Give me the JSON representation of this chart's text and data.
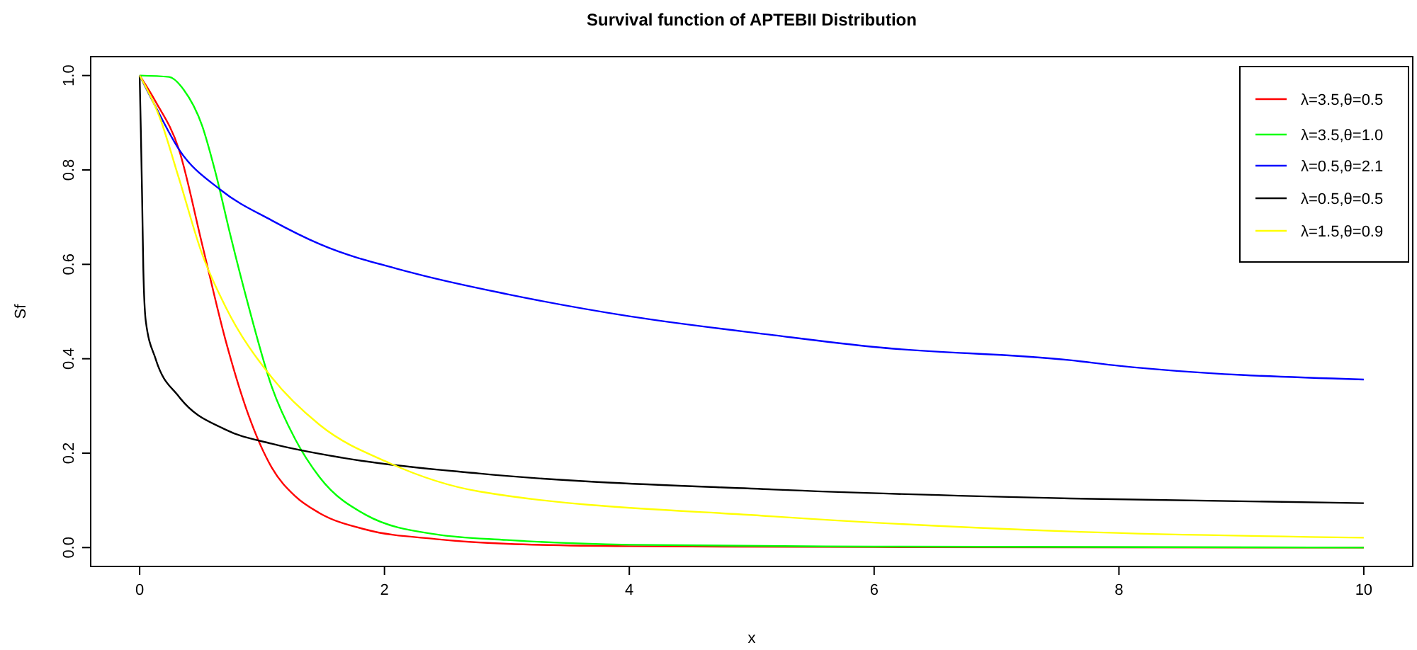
{
  "chart_data": {
    "type": "line",
    "title": "Survival function of APTEBII Distribution",
    "xlabel": "x",
    "ylabel": "Sf",
    "xlim": [
      -0.4,
      10.4
    ],
    "ylim": [
      -0.04,
      1.04
    ],
    "xticks": [
      0,
      2,
      4,
      6,
      8,
      10
    ],
    "yticks": [
      {
        "value": 0,
        "label": "0.0"
      },
      {
        "value": 0.2,
        "label": "0.2"
      },
      {
        "value": 0.4,
        "label": "0.4"
      },
      {
        "value": 0.6,
        "label": "0.6"
      },
      {
        "value": 0.8,
        "label": "0.8"
      },
      {
        "value": 1,
        "label": "1.0"
      }
    ],
    "legend": "top right",
    "grid": false,
    "marker": "none",
    "line_style": "solid",
    "series": [
      {
        "name": "λ=3.5,θ=0.5",
        "color": "#ff0000",
        "x": [
          0,
          0.13,
          0.32,
          0.51,
          0.7,
          0.89,
          1.08,
          1.27,
          1.47,
          1.85,
          2.42,
          3,
          4,
          6,
          10
        ],
        "values": [
          1,
          0.945,
          0.844,
          0.643,
          0.441,
          0.28,
          0.169,
          0.109,
          0.073,
          0.038,
          0.018,
          0.008,
          0.003,
          0.001,
          0
        ]
      },
      {
        "name": "λ=3.5,θ=1.0",
        "color": "#00ff00",
        "x": [
          0,
          0.24,
          0.36,
          0.51,
          0.62,
          0.74,
          0.89,
          1.08,
          1.27,
          1.47,
          1.85,
          2.42,
          3,
          4,
          6,
          10
        ],
        "values": [
          1,
          0.997,
          0.97,
          0.894,
          0.794,
          0.663,
          0.511,
          0.34,
          0.23,
          0.149,
          0.069,
          0.028,
          0.016,
          0.006,
          0.002,
          0
        ]
      },
      {
        "name": "λ=0.5,θ=2.1",
        "color": "#0000ff",
        "x": [
          0,
          0.13,
          0.32,
          0.66,
          1.08,
          1.47,
          2.23,
          3,
          4,
          5.18,
          6,
          7.6,
          8,
          10
        ],
        "values": [
          1,
          0.934,
          0.844,
          0.758,
          0.693,
          0.643,
          0.582,
          0.537,
          0.49,
          0.45,
          0.425,
          0.397,
          0.385,
          0.356
        ]
      },
      {
        "name": "λ=0.5,θ=0.5",
        "color": "#000000",
        "x": [
          0,
          0.01,
          0.02,
          0.03,
          0.05,
          0.13,
          0.32,
          0.7,
          1.08,
          1.66,
          2.77,
          5.18,
          7.6,
          10
        ],
        "values": [
          1,
          0.88,
          0.743,
          0.59,
          0.48,
          0.4,
          0.32,
          0.25,
          0.22,
          0.19,
          0.157,
          0.123,
          0.104,
          0.094
        ]
      },
      {
        "name": "λ=1.5,θ=0.9",
        "color": "#ffff00",
        "x": [
          0,
          0.16,
          0.32,
          0.51,
          0.7,
          1.08,
          1.47,
          2.04,
          2.77,
          5.18,
          7.6,
          10
        ],
        "values": [
          1,
          0.914,
          0.783,
          0.622,
          0.511,
          0.36,
          0.26,
          0.179,
          0.119,
          0.066,
          0.034,
          0.021
        ]
      }
    ]
  }
}
